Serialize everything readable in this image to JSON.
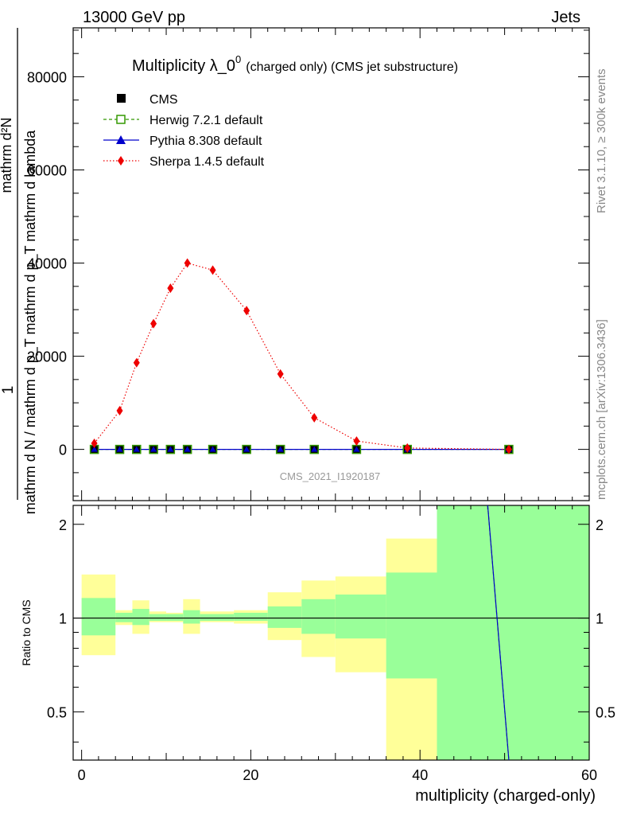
{
  "header": {
    "left": "13000 GeV pp",
    "right": "Jets"
  },
  "side": {
    "rivet": "Rivet 3.1.10, ≥ 300k events",
    "mcplots": "mcplots.cern.ch [arXiv:1306.3436]"
  },
  "watermark": "CMS_2021_I1920187",
  "yaxis": {
    "label_one": "1",
    "label_den": "mathrm d N / mathrm d p_T mathrm d p_T mathrm d lambda",
    "label_num": "mathrm d^{2}N",
    "label_num_display": "mathrm d²N",
    "ratio_label": "Ratio to CMS"
  },
  "colors": {
    "cms": "#000000",
    "herwig": "#339900",
    "pythia": "#0000cc",
    "sherpa": "#ee0000",
    "band_inner": "#99ff99",
    "band_outer": "#ffff99"
  },
  "chart_data": {
    "type": "scatter",
    "title_main": "Multiplicity λ_0",
    "title_sup": "0",
    "title_rest": "(charged only) (CMS jet substructure)",
    "title": "Multiplicity λ_0^0 (charged only) (CMS jet substructure)",
    "xlabel": "multiplicity (charged-only)",
    "xlim": [
      -1,
      60
    ],
    "ylim": [
      -11000,
      90500
    ],
    "x_ticks": [
      "0",
      "20",
      "40",
      "60"
    ],
    "y_ticks": [
      "0",
      "20000",
      "40000",
      "60000",
      "80000"
    ],
    "ratio_ylim": [
      0.35,
      2.3
    ],
    "ratio_ticks": [
      "0.5",
      "1",
      "2"
    ],
    "legend": [
      "CMS",
      "Herwig 7.2.1 default",
      "Pythia 8.308 default",
      "Sherpa 1.4.5 default"
    ],
    "x": [
      1.5,
      4.5,
      6.5,
      8.5,
      10.5,
      12.5,
      15.5,
      19.5,
      23.5,
      27.5,
      32.5,
      38.5,
      50.5
    ],
    "series": [
      {
        "name": "CMS",
        "values": [
          0,
          0,
          0,
          0,
          0,
          0,
          0,
          0,
          0,
          0,
          0,
          0,
          0
        ]
      },
      {
        "name": "Herwig 7.2.1 default",
        "values": [
          0,
          0,
          0,
          0,
          0,
          0,
          0,
          0,
          0,
          0,
          0,
          0,
          0
        ]
      },
      {
        "name": "Pythia 8.308 default",
        "values": [
          0,
          0,
          0,
          0,
          0,
          0,
          0,
          0,
          0,
          0,
          0,
          0,
          0
        ]
      },
      {
        "name": "Sherpa 1.4.5 default",
        "values": [
          1300,
          8300,
          18600,
          27000,
          34600,
          40000,
          38500,
          29800,
          16200,
          6800,
          1800,
          300,
          0
        ]
      }
    ],
    "sherpa_errors": [
      300,
      400,
      500,
      600,
      700,
      700,
      700,
      600,
      400,
      300,
      150,
      80,
      0
    ],
    "ratio_bands": [
      {
        "x0": 0,
        "x1": 4,
        "inner": [
          0.88,
          1.16
        ],
        "outer": [
          0.76,
          1.38
        ]
      },
      {
        "x0": 4,
        "x1": 6,
        "inner": [
          0.97,
          1.04
        ],
        "outer": [
          0.95,
          1.06
        ]
      },
      {
        "x0": 6,
        "x1": 8,
        "inner": [
          0.95,
          1.07
        ],
        "outer": [
          0.89,
          1.14
        ]
      },
      {
        "x0": 8,
        "x1": 10,
        "inner": [
          0.98,
          1.03
        ],
        "outer": [
          0.97,
          1.05
        ]
      },
      {
        "x0": 10,
        "x1": 12,
        "inner": [
          0.98,
          1.03
        ],
        "outer": [
          0.97,
          1.04
        ]
      },
      {
        "x0": 12,
        "x1": 14,
        "inner": [
          0.96,
          1.06
        ],
        "outer": [
          0.89,
          1.15
        ]
      },
      {
        "x0": 14,
        "x1": 18,
        "inner": [
          0.98,
          1.03
        ],
        "outer": [
          0.97,
          1.05
        ]
      },
      {
        "x0": 18,
        "x1": 22,
        "inner": [
          0.98,
          1.04
        ],
        "outer": [
          0.96,
          1.06
        ]
      },
      {
        "x0": 22,
        "x1": 26,
        "inner": [
          0.93,
          1.09
        ],
        "outer": [
          0.85,
          1.21
        ]
      },
      {
        "x0": 26,
        "x1": 30,
        "inner": [
          0.89,
          1.15
        ],
        "outer": [
          0.75,
          1.32
        ]
      },
      {
        "x0": 30,
        "x1": 36,
        "inner": [
          0.86,
          1.19
        ],
        "outer": [
          0.67,
          1.36
        ]
      },
      {
        "x0": 36,
        "x1": 42,
        "inner": [
          0.64,
          1.4
        ],
        "outer": [
          0.35,
          1.8
        ]
      },
      {
        "x0": 42,
        "x1": 60,
        "inner": [
          0.35,
          2.3
        ],
        "outer": [
          0.35,
          2.3
        ]
      }
    ],
    "ratio_mc_line": {
      "x": [
        48,
        50.5
      ],
      "y": [
        2.3,
        0.35
      ]
    }
  }
}
